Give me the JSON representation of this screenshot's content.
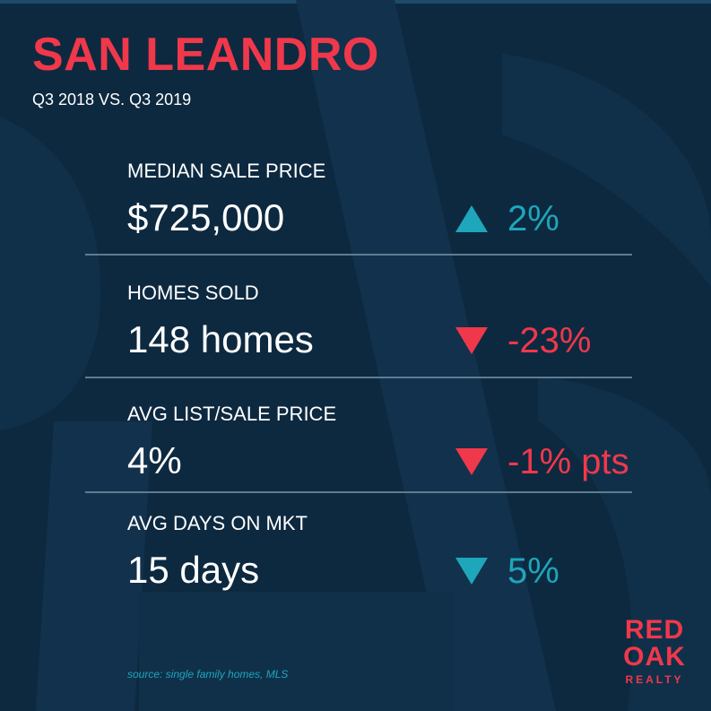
{
  "header": {
    "title": "SAN LEANDRO",
    "subtitle": "Q3 2018 VS. Q3 2019"
  },
  "metrics": [
    {
      "label": "MEDIAN SALE PRICE",
      "value": "$725,000",
      "change": "2%",
      "direction": "up",
      "color": "#1ea6ba"
    },
    {
      "label": "HOMES SOLD",
      "value": "148 homes",
      "change": "-23%",
      "direction": "down",
      "color": "#f0384b"
    },
    {
      "label": "AVG LIST/SALE PRICE",
      "value": "4%",
      "change": "-1% pts",
      "direction": "down",
      "color": "#f0384b"
    },
    {
      "label": "AVG DAYS ON MKT",
      "value": "15 days",
      "change": "5%",
      "direction": "down",
      "color": "#1ea6ba"
    }
  ],
  "footer": {
    "source": "source: single family homes, MLS"
  },
  "logo": {
    "line1": "RED",
    "line2": "OAK",
    "line3": "REALTY"
  },
  "colors": {
    "background": "#0d2940",
    "accent_red": "#f0384b",
    "accent_teal": "#1ea6ba",
    "divider": "#5f7b8f"
  }
}
